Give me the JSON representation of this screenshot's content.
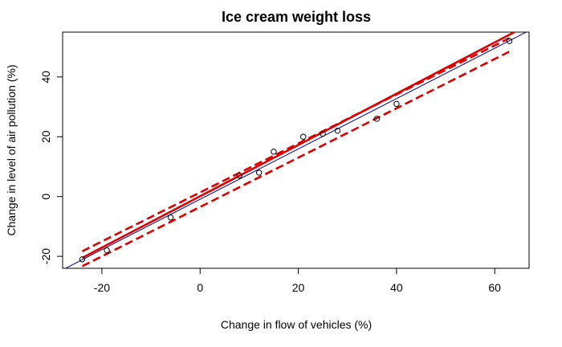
{
  "chart_data": {
    "type": "scatter",
    "title": "Ice cream weight loss",
    "xlabel": "Change in flow of vehicles (%)",
    "ylabel": "Change in level of air pollution (%)",
    "xlim": [
      -28,
      67
    ],
    "ylim": [
      -24,
      55
    ],
    "xticks": [
      -20,
      0,
      20,
      40,
      60
    ],
    "yticks": [
      -20,
      0,
      20,
      40
    ],
    "grid": false,
    "points": [
      {
        "x": -24,
        "y": -21
      },
      {
        "x": -19,
        "y": -18
      },
      {
        "x": -6,
        "y": -7
      },
      {
        "x": 8,
        "y": 7
      },
      {
        "x": 12,
        "y": 8
      },
      {
        "x": 15,
        "y": 15
      },
      {
        "x": 21,
        "y": 20
      },
      {
        "x": 25,
        "y": 21
      },
      {
        "x": 28,
        "y": 22
      },
      {
        "x": 36,
        "y": 26
      },
      {
        "x": 40,
        "y": 31
      },
      {
        "x": 63,
        "y": 52
      }
    ],
    "lines": [
      {
        "style": "solid",
        "color": "#00008b",
        "from": [
          -28,
          -24.5
        ],
        "to": [
          67,
          55.5
        ]
      },
      {
        "style": "solid",
        "color": "#dd0000",
        "from": [
          -24,
          -20.5
        ],
        "to": [
          64,
          55
        ]
      },
      {
        "style": "dashed",
        "color": "#dd0000",
        "from": [
          -24,
          -18.3
        ],
        "to": [
          63,
          53
        ]
      },
      {
        "style": "dashed",
        "color": "#dd0000",
        "from": [
          -24,
          -23.3
        ],
        "to": [
          63,
          48.5
        ]
      }
    ]
  }
}
